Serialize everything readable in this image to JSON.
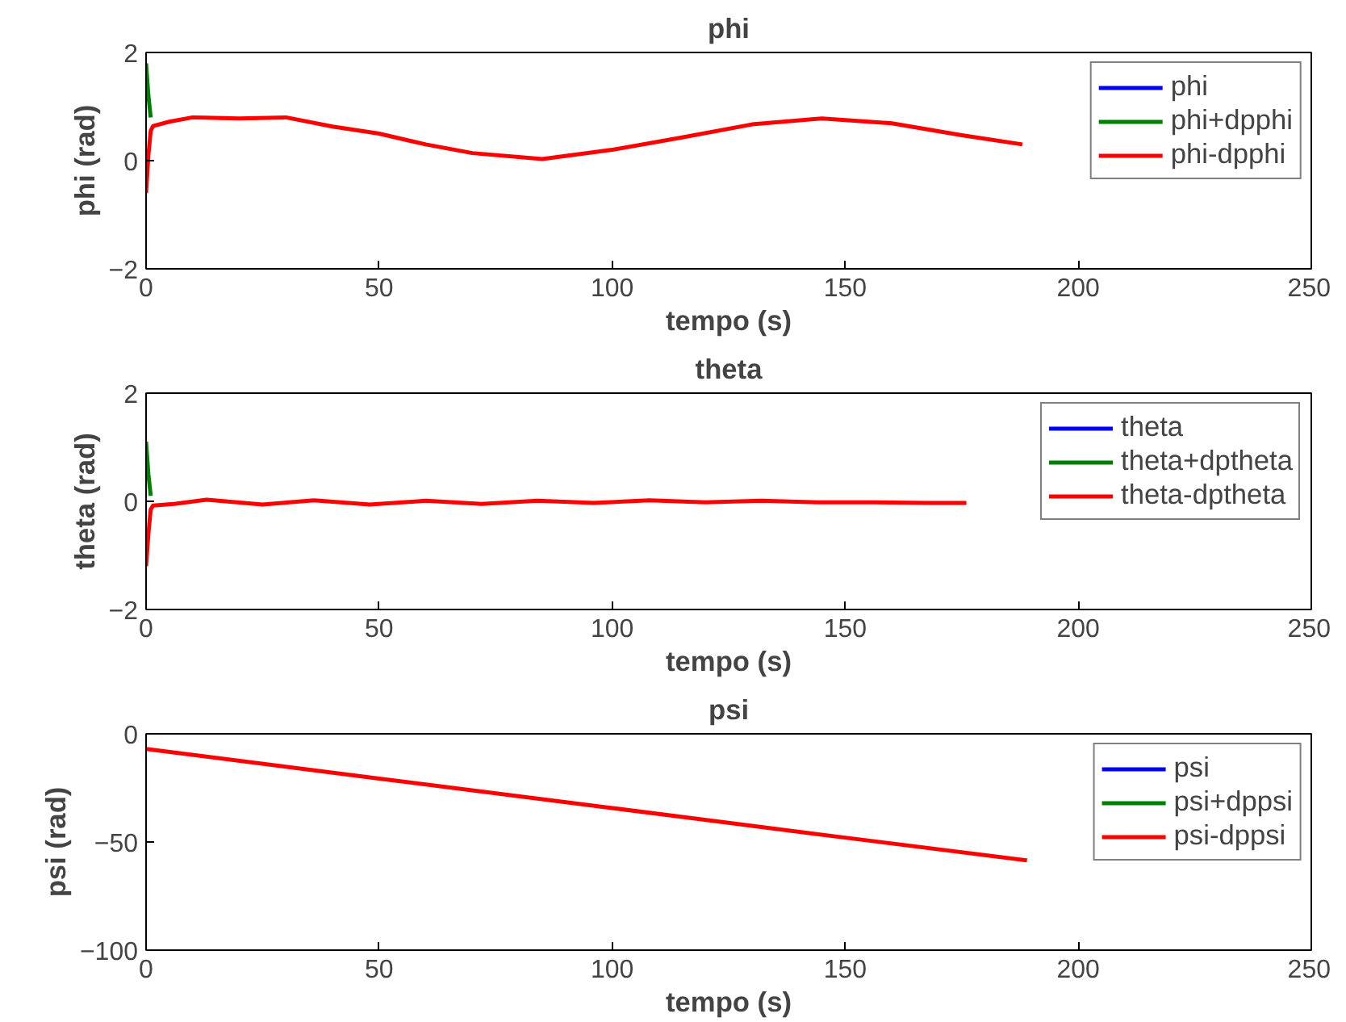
{
  "chart_data": [
    {
      "type": "line",
      "title": "phi",
      "xlabel": "tempo (s)",
      "ylabel": "phi (rad)",
      "xlim": [
        0,
        250
      ],
      "ylim": [
        -2,
        2
      ],
      "xticks": [
        0,
        50,
        100,
        150,
        200,
        250
      ],
      "yticks": [
        -2,
        0,
        2
      ],
      "legend": "top right",
      "grid": false,
      "x": [
        0,
        0.5,
        1,
        1.5,
        5,
        10,
        20,
        30,
        40,
        50,
        60,
        70,
        85,
        100,
        115,
        130,
        145,
        160,
        175,
        188
      ],
      "series": [
        {
          "name": "phi",
          "color": "#0000ff",
          "values": [
            null,
            null,
            null,
            null,
            null,
            null,
            null,
            null,
            null,
            null,
            null,
            null,
            null,
            null,
            null,
            null,
            null,
            null,
            null,
            null
          ]
        },
        {
          "name": "phi+dpphi",
          "color": "#008000",
          "values": [
            1.8,
            1.2,
            0.8,
            null,
            null,
            null,
            null,
            null,
            null,
            null,
            null,
            null,
            null,
            null,
            null,
            null,
            null,
            null,
            null,
            null
          ]
        },
        {
          "name": "phi-dpphi",
          "color": "#ff0000",
          "values": [
            -0.6,
            0.1,
            0.55,
            0.64,
            0.72,
            0.8,
            0.78,
            0.8,
            0.63,
            0.5,
            0.3,
            0.14,
            0.03,
            0.2,
            0.43,
            0.67,
            0.78,
            0.69,
            0.47,
            0.3
          ]
        }
      ]
    },
    {
      "type": "line",
      "title": "theta",
      "xlabel": "tempo (s)",
      "ylabel": "theta (rad)",
      "xlim": [
        0,
        250
      ],
      "ylim": [
        -2,
        2
      ],
      "xticks": [
        0,
        50,
        100,
        150,
        200,
        250
      ],
      "yticks": [
        -2,
        0,
        2
      ],
      "legend": "top right",
      "grid": false,
      "x": [
        0,
        0.5,
        1,
        1.5,
        6,
        13,
        25,
        36,
        48,
        60,
        72,
        84,
        96,
        108,
        120,
        132,
        144,
        156,
        168,
        176
      ],
      "series": [
        {
          "name": "theta",
          "color": "#0000ff",
          "values": [
            null,
            null,
            null,
            null,
            null,
            null,
            null,
            null,
            null,
            null,
            null,
            null,
            null,
            null,
            null,
            null,
            null,
            null,
            null,
            null
          ]
        },
        {
          "name": "theta+dptheta",
          "color": "#008000",
          "values": [
            1.1,
            0.5,
            0.1,
            null,
            null,
            null,
            null,
            null,
            null,
            null,
            null,
            null,
            null,
            null,
            null,
            null,
            null,
            null,
            null,
            null
          ]
        },
        {
          "name": "theta-dptheta",
          "color": "#ff0000",
          "values": [
            -1.2,
            -0.6,
            -0.15,
            -0.08,
            -0.05,
            0.03,
            -0.06,
            0.02,
            -0.06,
            0.01,
            -0.05,
            0.01,
            -0.03,
            0.02,
            -0.02,
            0.01,
            -0.02,
            -0.02,
            -0.03,
            -0.03
          ]
        }
      ]
    },
    {
      "type": "line",
      "title": "psi",
      "xlabel": "tempo (s)",
      "ylabel": "psi (rad)",
      "xlim": [
        0,
        250
      ],
      "ylim": [
        -100,
        0
      ],
      "xticks": [
        0,
        50,
        100,
        150,
        200,
        250
      ],
      "yticks": [
        -100,
        -50,
        0
      ],
      "legend": "top right",
      "grid": false,
      "x": [
        0,
        1,
        50,
        100,
        150,
        189
      ],
      "series": [
        {
          "name": "psi",
          "color": "#0000ff",
          "values": [
            null,
            null,
            null,
            null,
            null,
            null
          ]
        },
        {
          "name": "psi+dppsi",
          "color": "#008000",
          "values": [
            null,
            null,
            null,
            null,
            null,
            null
          ]
        },
        {
          "name": "psi-dppsi",
          "color": "#ff0000",
          "values": [
            -7,
            -7.3,
            -20.7,
            -34.3,
            -48,
            -58.5
          ]
        }
      ]
    }
  ]
}
